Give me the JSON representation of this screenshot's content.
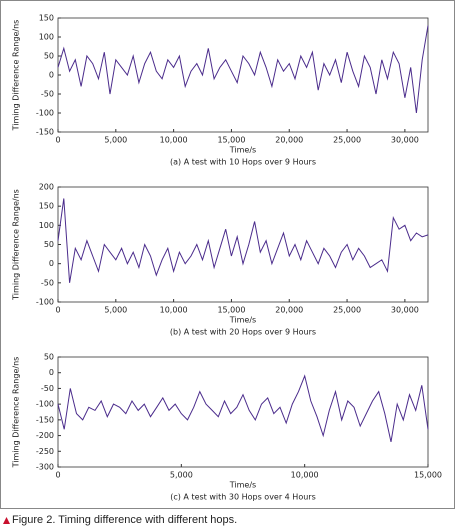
{
  "chart_data": [
    {
      "type": "line",
      "subtitle": "(a) A test with 10 Hops over 9 Hours",
      "x_label": "Time/s",
      "y_label": "Timing Difference Range/ns",
      "color": "#4b2c8c",
      "x": [
        0,
        500,
        1000,
        1500,
        2000,
        2500,
        3000,
        3500,
        4000,
        4500,
        5000,
        5500,
        6000,
        6500,
        7000,
        7500,
        8000,
        8500,
        9000,
        9500,
        10000,
        10500,
        11000,
        11500,
        12000,
        12500,
        13000,
        13500,
        14000,
        14500,
        15000,
        15500,
        16000,
        16500,
        17000,
        17500,
        18000,
        18500,
        19000,
        19500,
        20000,
        20500,
        21000,
        21500,
        22000,
        22500,
        23000,
        23500,
        24000,
        24500,
        25000,
        25500,
        26000,
        26500,
        27000,
        27500,
        28000,
        28500,
        29000,
        29500,
        30000,
        30500,
        31000,
        31500,
        32000
      ],
      "values": [
        20,
        70,
        10,
        40,
        -30,
        50,
        30,
        -10,
        60,
        -50,
        40,
        20,
        0,
        50,
        -20,
        30,
        60,
        10,
        -10,
        40,
        20,
        50,
        -30,
        10,
        30,
        0,
        70,
        -10,
        20,
        40,
        10,
        -20,
        50,
        30,
        0,
        60,
        20,
        -30,
        40,
        10,
        30,
        -10,
        50,
        20,
        60,
        -40,
        30,
        0,
        40,
        -20,
        60,
        10,
        -30,
        50,
        20,
        -50,
        40,
        -10,
        60,
        30,
        -60,
        20,
        -100,
        40,
        130
      ],
      "xlim": [
        0,
        32000
      ],
      "xticks": [
        0,
        {
          "value": 5000,
          "label": "5,000"
        },
        {
          "value": 10000,
          "label": "10,000"
        },
        {
          "value": 15000,
          "label": "15,000"
        },
        {
          "value": 20000,
          "label": "20,000"
        },
        {
          "value": 25000,
          "label": "25,000"
        },
        {
          "value": 30000,
          "label": "30,000"
        }
      ],
      "ylim": [
        -150,
        150
      ],
      "yticks": [
        -150,
        -100,
        -50,
        0,
        50,
        100,
        150
      ]
    },
    {
      "type": "line",
      "subtitle": "(b) A test with 20 Hops over 9 Hours",
      "x_label": "Time/s",
      "y_label": "Timing Difference Range/ns",
      "color": "#4b2c8c",
      "x": [
        0,
        500,
        1000,
        1500,
        2000,
        2500,
        3000,
        3500,
        4000,
        4500,
        5000,
        5500,
        6000,
        6500,
        7000,
        7500,
        8000,
        8500,
        9000,
        9500,
        10000,
        10500,
        11000,
        11500,
        12000,
        12500,
        13000,
        13500,
        14000,
        14500,
        15000,
        15500,
        16000,
        16500,
        17000,
        17500,
        18000,
        18500,
        19000,
        19500,
        20000,
        20500,
        21000,
        21500,
        22000,
        22500,
        23000,
        23500,
        24000,
        24500,
        25000,
        25500,
        26000,
        26500,
        27000,
        27500,
        28000,
        28500,
        29000,
        29500,
        30000,
        30500,
        31000,
        31500,
        32000
      ],
      "values": [
        60,
        170,
        -50,
        40,
        10,
        60,
        20,
        -20,
        50,
        30,
        10,
        40,
        0,
        30,
        -10,
        50,
        20,
        -30,
        10,
        40,
        -20,
        30,
        0,
        20,
        50,
        10,
        60,
        -10,
        40,
        90,
        20,
        70,
        0,
        50,
        110,
        30,
        60,
        0,
        40,
        80,
        20,
        50,
        10,
        60,
        30,
        0,
        40,
        20,
        -10,
        30,
        50,
        10,
        40,
        20,
        -10,
        0,
        10,
        -20,
        120,
        90,
        100,
        60,
        80,
        70,
        75
      ],
      "xlim": [
        0,
        32000
      ],
      "xticks": [
        0,
        {
          "value": 5000,
          "label": "5,000"
        },
        {
          "value": 10000,
          "label": "10,000"
        },
        {
          "value": 15000,
          "label": "15,000"
        },
        {
          "value": 20000,
          "label": "20,000"
        },
        {
          "value": 25000,
          "label": "25,000"
        },
        {
          "value": 30000,
          "label": "30,000"
        }
      ],
      "ylim": [
        -100,
        200
      ],
      "yticks": [
        -100,
        -50,
        0,
        50,
        100,
        150,
        200
      ]
    },
    {
      "type": "line",
      "subtitle": "(c) A test with 30 Hops over 4 Hours",
      "x_label": "Time/s",
      "y_label": "Timing Difference Range/ns",
      "color": "#4b2c8c",
      "x": [
        0,
        250,
        500,
        750,
        1000,
        1250,
        1500,
        1750,
        2000,
        2250,
        2500,
        2750,
        3000,
        3250,
        3500,
        3750,
        4000,
        4250,
        4500,
        4750,
        5000,
        5250,
        5500,
        5750,
        6000,
        6250,
        6500,
        6750,
        7000,
        7250,
        7500,
        7750,
        8000,
        8250,
        8500,
        8750,
        9000,
        9250,
        9500,
        9750,
        10000,
        10250,
        10500,
        10750,
        11000,
        11250,
        11500,
        11750,
        12000,
        12250,
        12500,
        12750,
        13000,
        13250,
        13500,
        13750,
        14000,
        14250,
        14500,
        14750,
        15000
      ],
      "values": [
        -100,
        -180,
        -50,
        -130,
        -150,
        -110,
        -120,
        -90,
        -140,
        -100,
        -110,
        -130,
        -90,
        -120,
        -100,
        -140,
        -110,
        -80,
        -120,
        -100,
        -130,
        -150,
        -110,
        -60,
        -100,
        -120,
        -140,
        -90,
        -130,
        -110,
        -70,
        -120,
        -150,
        -100,
        -80,
        -130,
        -110,
        -160,
        -100,
        -60,
        -10,
        -90,
        -140,
        -200,
        -120,
        -60,
        -150,
        -90,
        -110,
        -170,
        -130,
        -90,
        -60,
        -130,
        -220,
        -100,
        -150,
        -70,
        -120,
        -40,
        -180
      ],
      "xlim": [
        0,
        15000
      ],
      "xticks": [
        0,
        {
          "value": 5000,
          "label": "5,000"
        },
        {
          "value": 10000,
          "label": "10,000"
        },
        {
          "value": 15000,
          "label": "15,000"
        }
      ],
      "ylim": [
        -300,
        50
      ],
      "yticks": [
        -300,
        -250,
        -200,
        -150,
        -100,
        -50,
        0,
        50
      ]
    }
  ],
  "caption": "Figure 2. Timing difference with different hops."
}
